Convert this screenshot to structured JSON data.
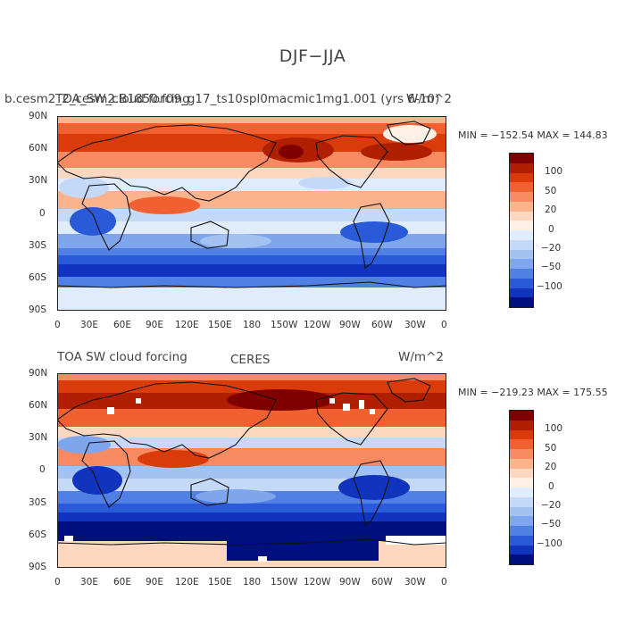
{
  "figure": {
    "title": "DJF−JJA"
  },
  "panels": [
    {
      "left_label": "b.cesm2_2_cesm2.B1850.f09_g17_ts10spl0macmic1mg1.001 (yrs 6-10)",
      "center_label": "TOA_SW_cloud forcing",
      "right_label": "W/m^2",
      "stats": "MIN = −152.54 MAX = 144.83"
    },
    {
      "left_label": "TOA SW cloud forcing",
      "center_label": "CERES",
      "right_label": "W/m^2",
      "stats": "MIN = −219.23 MAX = 175.55"
    }
  ],
  "axes": {
    "lat_labels": [
      "90N",
      "60N",
      "30N",
      "0",
      "30S",
      "60S",
      "90S"
    ],
    "lon_labels": [
      "0",
      "30E",
      "60E",
      "90E",
      "120E",
      "150E",
      "180",
      "150W",
      "120W",
      "90W",
      "60W",
      "30W",
      "0"
    ]
  },
  "colorbar": {
    "labels": [
      "100",
      "50",
      "20",
      "0",
      "−20",
      "−50",
      "−100"
    ],
    "colors": [
      "#800000",
      "#b01f00",
      "#d93b0a",
      "#f06030",
      "#f78a60",
      "#fbb38e",
      "#fdd7bf",
      "#fef0e4",
      "#e0ecfb",
      "#c4d9f7",
      "#a3c2f2",
      "#7fa6ec",
      "#5080e4",
      "#2a5ad8",
      "#1034be",
      "#000f80"
    ]
  }
}
